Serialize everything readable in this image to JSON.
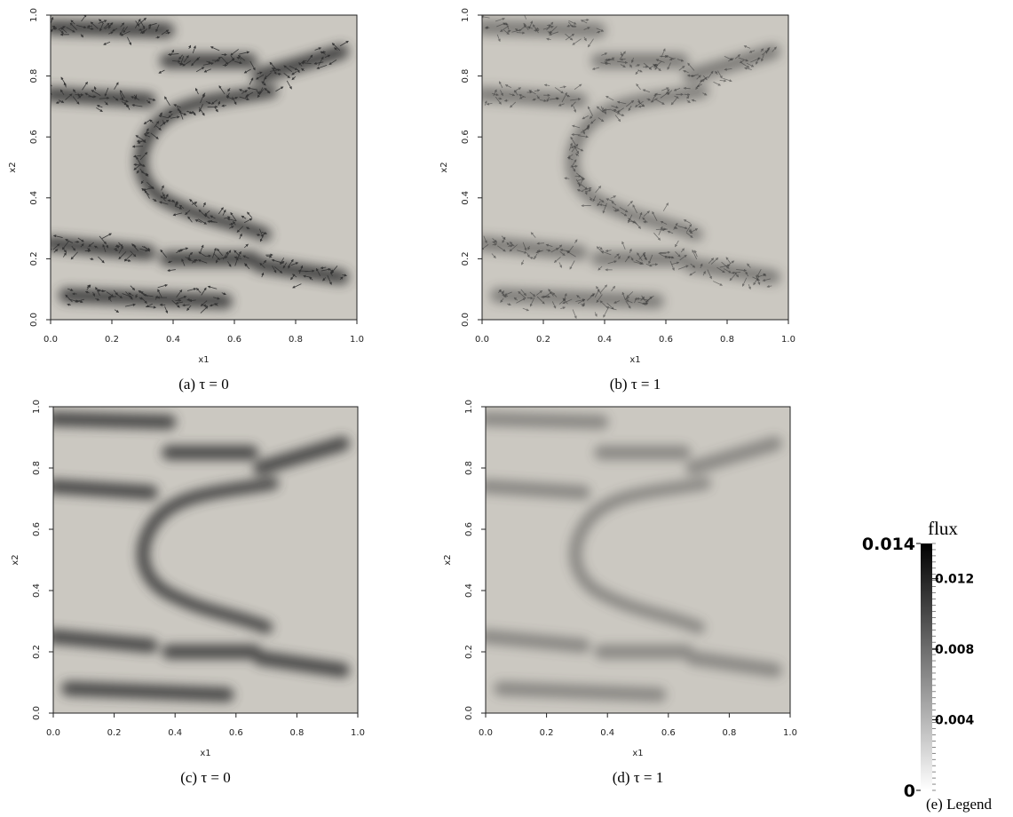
{
  "chart_data": [
    {
      "type": "quiver",
      "xlabel": "x1",
      "ylabel": "x2",
      "xlim": [
        0,
        1
      ],
      "ylim": [
        0,
        1
      ],
      "xticks": [
        {
          "value": 0,
          "label": "0.0"
        },
        0.2,
        0.4,
        0.6,
        0.8,
        {
          "value": 1,
          "label": "1.0"
        }
      ],
      "yticks": [
        {
          "value": 0,
          "label": "0.0"
        },
        0.2,
        0.4,
        0.6,
        0.8,
        {
          "value": 1,
          "label": "1.0"
        }
      ],
      "caption": "(a) τ = 0"
    },
    {
      "type": "quiver",
      "xlabel": "x1",
      "ylabel": "x2",
      "xlim": [
        0,
        1
      ],
      "ylim": [
        0,
        1
      ],
      "xticks": [
        {
          "value": 0,
          "label": "0.0"
        },
        0.2,
        0.4,
        0.6,
        0.8,
        {
          "value": 1,
          "label": "1.0"
        }
      ],
      "yticks": [
        {
          "value": 0,
          "label": "0.0"
        },
        0.2,
        0.4,
        0.6,
        0.8,
        {
          "value": 1,
          "label": "1.0"
        }
      ],
      "caption": "(b) τ = 1"
    },
    {
      "type": "field",
      "xlabel": "x1",
      "ylabel": "x2",
      "xlim": [
        0,
        1
      ],
      "ylim": [
        0,
        1
      ],
      "xticks": [
        {
          "value": 0,
          "label": "0.0"
        },
        0.2,
        0.4,
        0.6,
        0.8,
        {
          "value": 1,
          "label": "1.0"
        }
      ],
      "yticks": [
        {
          "value": 0,
          "label": "0.0"
        },
        0.2,
        0.4,
        0.6,
        0.8,
        {
          "value": 1,
          "label": "1.0"
        }
      ],
      "caption": "(c) τ = 0"
    },
    {
      "type": "field",
      "xlabel": "x1",
      "ylabel": "x2",
      "xlim": [
        0,
        1
      ],
      "ylim": [
        0,
        1
      ],
      "xticks": [
        {
          "value": 0,
          "label": "0.0"
        },
        0.2,
        0.4,
        0.6,
        0.8,
        {
          "value": 1,
          "label": "1.0"
        }
      ],
      "yticks": [
        {
          "value": 0,
          "label": "0.0"
        },
        0.2,
        0.4,
        0.6,
        0.8,
        {
          "value": 1,
          "label": "1.0"
        }
      ],
      "caption": "(d) τ = 1"
    },
    {
      "type": "colorbar",
      "title": "flux",
      "ylim": [
        0,
        0.014
      ],
      "yticks": [
        0,
        0.004,
        0.008,
        0.012,
        0.014
      ],
      "colors": [
        "#ffffff",
        "#000000"
      ],
      "caption": "(e) Legend"
    }
  ]
}
